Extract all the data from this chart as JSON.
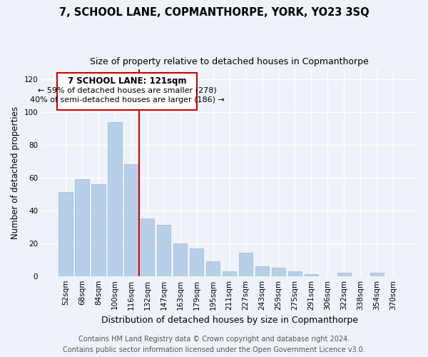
{
  "title": "7, SCHOOL LANE, COPMANTHORPE, YORK, YO23 3SQ",
  "subtitle": "Size of property relative to detached houses in Copmanthorpe",
  "xlabel": "Distribution of detached houses by size in Copmanthorpe",
  "ylabel": "Number of detached properties",
  "bar_labels": [
    "52sqm",
    "68sqm",
    "84sqm",
    "100sqm",
    "116sqm",
    "132sqm",
    "147sqm",
    "163sqm",
    "179sqm",
    "195sqm",
    "211sqm",
    "227sqm",
    "243sqm",
    "259sqm",
    "275sqm",
    "291sqm",
    "306sqm",
    "322sqm",
    "338sqm",
    "354sqm",
    "370sqm"
  ],
  "bar_values": [
    51,
    59,
    56,
    94,
    68,
    35,
    31,
    20,
    17,
    9,
    3,
    14,
    6,
    5,
    3,
    1,
    0,
    2,
    0,
    2,
    0
  ],
  "bar_color": "#b8cfe8",
  "highlight_line_index": 4,
  "highlight_color": "#cc0000",
  "annotation_title": "7 SCHOOL LANE: 121sqm",
  "annotation_line1": "← 59% of detached houses are smaller (278)",
  "annotation_line2": "40% of semi-detached houses are larger (186) →",
  "annotation_box_color": "#ffffff",
  "annotation_box_edge_color": "#cc0000",
  "ylim": [
    0,
    126
  ],
  "yticks": [
    0,
    20,
    40,
    60,
    80,
    100,
    120
  ],
  "footer_line1": "Contains HM Land Registry data © Crown copyright and database right 2024.",
  "footer_line2": "Contains public sector information licensed under the Open Government Licence v3.0.",
  "background_color": "#eef2f9",
  "grid_color": "#ffffff",
  "title_fontsize": 10.5,
  "subtitle_fontsize": 9,
  "xlabel_fontsize": 9,
  "ylabel_fontsize": 8.5,
  "tick_fontsize": 7.5,
  "footer_fontsize": 7
}
